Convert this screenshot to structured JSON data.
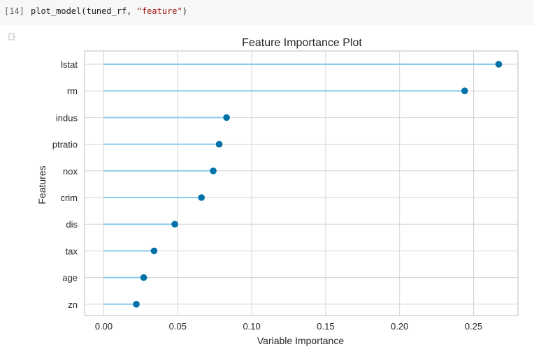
{
  "cell": {
    "prompt": "[14]",
    "code_func": "plot_model(tuned_rf, ",
    "code_str": "\"feature\"",
    "code_close": ")"
  },
  "icons": {
    "output": "output-toggle-icon"
  },
  "colors": {
    "stem": "#87ceeb",
    "marker": "#0072a8",
    "grid": "#d3d3d3",
    "frame": "#c8c8c8"
  },
  "chart_data": {
    "type": "lollipop",
    "title": "Feature Importance Plot",
    "xlabel": "Variable Importance",
    "ylabel": "Features",
    "xlim": [
      -0.013,
      0.28
    ],
    "xticks": [
      "0.00",
      "0.05",
      "0.10",
      "0.15",
      "0.20",
      "0.25"
    ],
    "grid": true,
    "categories": [
      "lstat",
      "rm",
      "indus",
      "ptratio",
      "nox",
      "crim",
      "dis",
      "tax",
      "age",
      "zn"
    ],
    "values": [
      0.267,
      0.244,
      0.083,
      0.078,
      0.074,
      0.066,
      0.048,
      0.034,
      0.027,
      0.022
    ]
  }
}
